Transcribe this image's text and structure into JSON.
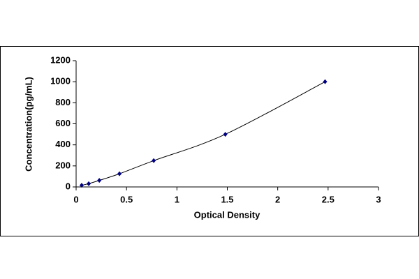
{
  "chart_data": {
    "type": "scatter",
    "x_label": "Optical Density",
    "y_label": "Concentration(pg/mL)",
    "x": [
      0.055,
      0.125,
      0.23,
      0.43,
      0.77,
      1.48,
      2.47
    ],
    "values": [
      16,
      31,
      62,
      125,
      250,
      500,
      1000
    ],
    "color": "#000080",
    "line_color": "#000000",
    "line": true,
    "xlim": [
      0,
      3
    ],
    "xticks": [
      0,
      0.5,
      1,
      1.5,
      2,
      2.5,
      3
    ],
    "ylim": [
      0,
      1200
    ],
    "yticks": [
      0,
      200,
      400,
      600,
      800,
      1000,
      1200
    ]
  }
}
